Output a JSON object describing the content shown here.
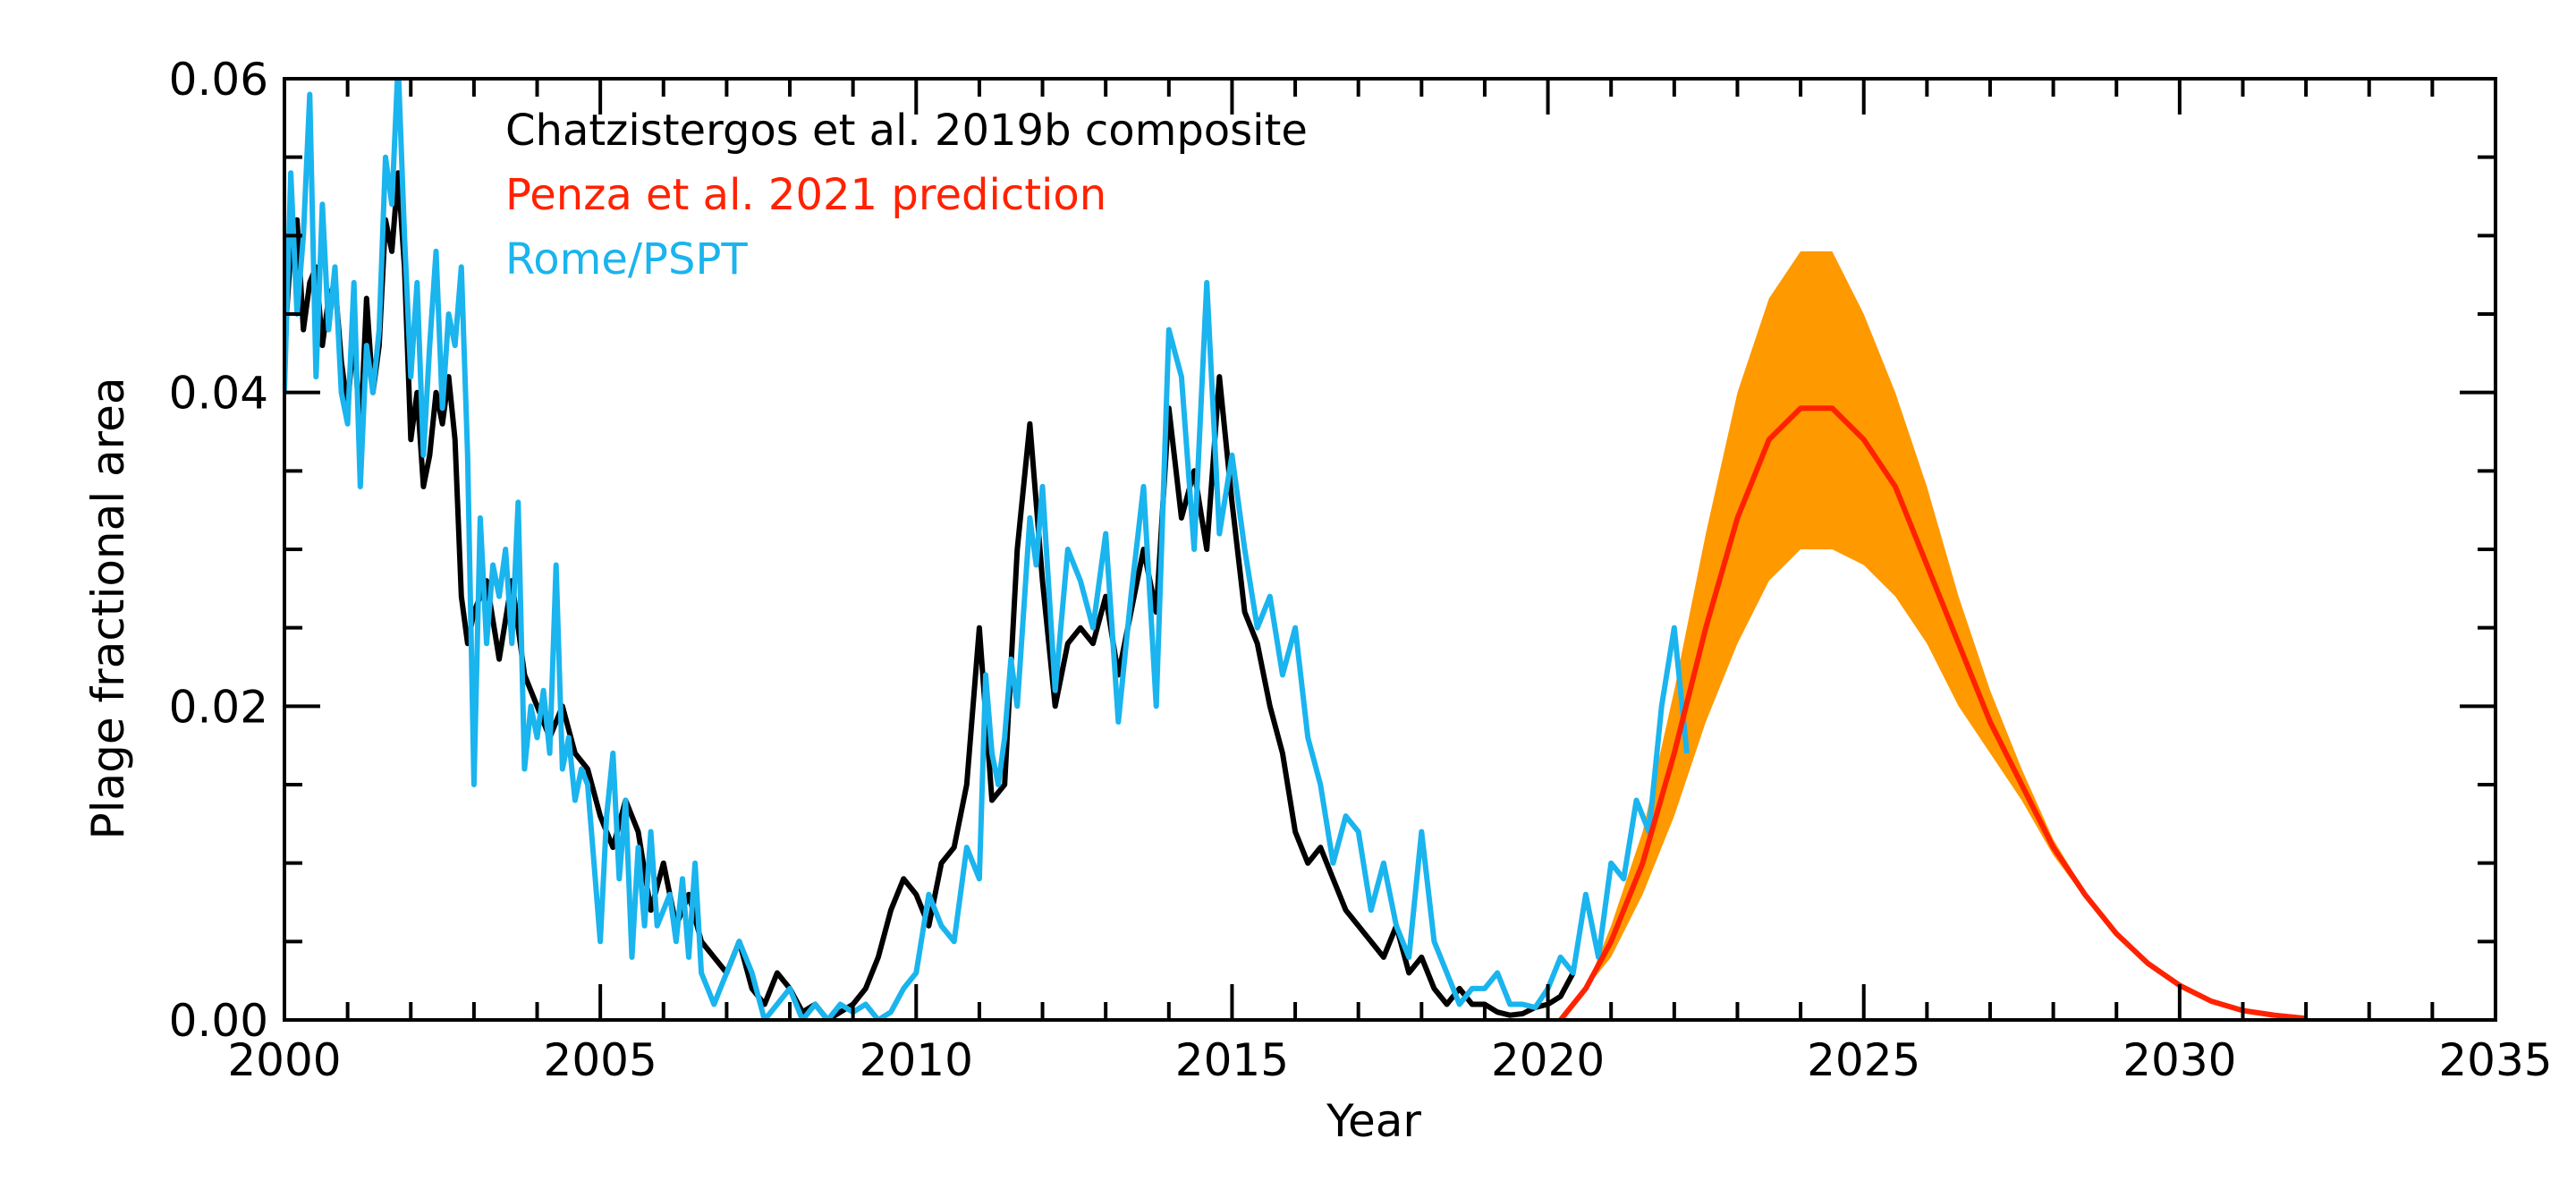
{
  "chart_data": {
    "type": "line",
    "xlabel": "Year",
    "ylabel": "Plage fractional area",
    "xlim": [
      2000,
      2035
    ],
    "ylim": [
      0.0,
      0.06
    ],
    "xticks": [
      {
        "value": 2000,
        "label": "2000"
      },
      {
        "value": 2005,
        "label": "2005"
      },
      {
        "value": 2010,
        "label": "2010"
      },
      {
        "value": 2015,
        "label": "2015"
      },
      {
        "value": 2020,
        "label": "2020"
      },
      {
        "value": 2025,
        "label": "2025"
      },
      {
        "value": 2030,
        "label": "2030"
      },
      {
        "value": 2035,
        "label": "2035"
      }
    ],
    "yticks": [
      {
        "value": 0.0,
        "label": "0.00"
      },
      {
        "value": 0.02,
        "label": "0.02"
      },
      {
        "value": 0.04,
        "label": "0.04"
      },
      {
        "value": 0.06,
        "label": "0.06"
      }
    ],
    "legend": [
      {
        "label": "Chatzistergos et al. 2019b composite",
        "color": "#000000"
      },
      {
        "label": "Penza et al. 2021 prediction",
        "color": "#ff2200"
      },
      {
        "label": "Rome/PSPT",
        "color": "#1ab4ee"
      }
    ],
    "band_color": "#ff9900",
    "series": [
      {
        "name": "Chatzistergos et al. 2019b composite",
        "color": "#000000",
        "x": [
          2000.0,
          2000.1,
          2000.2,
          2000.3,
          2000.4,
          2000.5,
          2000.6,
          2000.7,
          2000.8,
          2000.9,
          2001.0,
          2001.1,
          2001.2,
          2001.3,
          2001.4,
          2001.5,
          2001.6,
          2001.7,
          2001.8,
          2001.9,
          2002.0,
          2002.1,
          2002.2,
          2002.3,
          2002.4,
          2002.5,
          2002.6,
          2002.7,
          2002.8,
          2002.9,
          2003.0,
          2003.2,
          2003.4,
          2003.6,
          2003.8,
          2004.0,
          2004.2,
          2004.4,
          2004.6,
          2004.8,
          2005.0,
          2005.2,
          2005.4,
          2005.6,
          2005.8,
          2006.0,
          2006.2,
          2006.4,
          2006.6,
          2006.8,
          2007.0,
          2007.2,
          2007.4,
          2007.6,
          2007.8,
          2008.0,
          2008.2,
          2008.4,
          2008.6,
          2008.8,
          2009.0,
          2009.2,
          2009.4,
          2009.6,
          2009.8,
          2010.0,
          2010.2,
          2010.4,
          2010.6,
          2010.8,
          2011.0,
          2011.2,
          2011.4,
          2011.6,
          2011.8,
          2012.0,
          2012.2,
          2012.4,
          2012.6,
          2012.8,
          2013.0,
          2013.2,
          2013.4,
          2013.6,
          2013.8,
          2014.0,
          2014.2,
          2014.4,
          2014.6,
          2014.8,
          2015.0,
          2015.2,
          2015.4,
          2015.6,
          2015.8,
          2016.0,
          2016.2,
          2016.4,
          2016.6,
          2016.8,
          2017.0,
          2017.2,
          2017.4,
          2017.6,
          2017.8,
          2018.0,
          2018.2,
          2018.4,
          2018.6,
          2018.8,
          2019.0,
          2019.2,
          2019.4,
          2019.6,
          2019.8,
          2020.0,
          2020.2,
          2020.4
        ],
        "y": [
          0.043,
          0.049,
          0.051,
          0.044,
          0.047,
          0.048,
          0.043,
          0.046,
          0.047,
          0.042,
          0.039,
          0.044,
          0.037,
          0.046,
          0.04,
          0.043,
          0.051,
          0.049,
          0.054,
          0.048,
          0.037,
          0.04,
          0.034,
          0.036,
          0.04,
          0.038,
          0.041,
          0.037,
          0.027,
          0.024,
          0.026,
          0.028,
          0.023,
          0.028,
          0.022,
          0.02,
          0.018,
          0.02,
          0.017,
          0.016,
          0.013,
          0.011,
          0.014,
          0.012,
          0.007,
          0.01,
          0.006,
          0.008,
          0.005,
          0.004,
          0.003,
          0.005,
          0.002,
          0.001,
          0.003,
          0.002,
          0.0005,
          0.001,
          0.0,
          0.0005,
          0.001,
          0.002,
          0.004,
          0.007,
          0.009,
          0.008,
          0.006,
          0.01,
          0.011,
          0.015,
          0.025,
          0.014,
          0.015,
          0.03,
          0.038,
          0.028,
          0.02,
          0.024,
          0.025,
          0.024,
          0.027,
          0.022,
          0.026,
          0.03,
          0.026,
          0.039,
          0.032,
          0.035,
          0.03,
          0.041,
          0.033,
          0.026,
          0.024,
          0.02,
          0.017,
          0.012,
          0.01,
          0.011,
          0.009,
          0.007,
          0.006,
          0.005,
          0.004,
          0.006,
          0.003,
          0.004,
          0.002,
          0.001,
          0.002,
          0.001,
          0.001,
          0.0005,
          0.0003,
          0.0004,
          0.0008,
          0.001,
          0.0015,
          0.003
        ]
      },
      {
        "name": "Rome/PSPT",
        "color": "#1ab4ee",
        "x": [
          2000.0,
          2000.1,
          2000.2,
          2000.3,
          2000.4,
          2000.5,
          2000.6,
          2000.7,
          2000.8,
          2000.9,
          2001.0,
          2001.1,
          2001.2,
          2001.3,
          2001.4,
          2001.5,
          2001.6,
          2001.7,
          2001.8,
          2001.9,
          2002.0,
          2002.1,
          2002.2,
          2002.3,
          2002.4,
          2002.5,
          2002.6,
          2002.7,
          2002.8,
          2002.9,
          2003.0,
          2003.1,
          2003.2,
          2003.3,
          2003.4,
          2003.5,
          2003.6,
          2003.7,
          2003.8,
          2003.9,
          2004.0,
          2004.1,
          2004.2,
          2004.3,
          2004.4,
          2004.5,
          2004.6,
          2004.7,
          2004.8,
          2004.9,
          2005.0,
          2005.1,
          2005.2,
          2005.3,
          2005.4,
          2005.5,
          2005.6,
          2005.7,
          2005.8,
          2005.9,
          2006.0,
          2006.1,
          2006.2,
          2006.3,
          2006.4,
          2006.5,
          2006.6,
          2006.7,
          2006.8,
          2006.9,
          2007.0,
          2007.2,
          2007.4,
          2007.6,
          2007.8,
          2008.0,
          2008.2,
          2008.4,
          2008.6,
          2008.8,
          2009.0,
          2009.2,
          2009.4,
          2009.6,
          2009.8,
          2010.0,
          2010.2,
          2010.4,
          2010.6,
          2010.8,
          2011.0,
          2011.1,
          2011.2,
          2011.3,
          2011.4,
          2011.5,
          2011.6,
          2011.7,
          2011.8,
          2011.9,
          2012.0,
          2012.2,
          2012.4,
          2012.6,
          2012.8,
          2013.0,
          2013.2,
          2013.4,
          2013.6,
          2013.8,
          2014.0,
          2014.2,
          2014.4,
          2014.6,
          2014.8,
          2015.0,
          2015.2,
          2015.4,
          2015.6,
          2015.8,
          2016.0,
          2016.2,
          2016.4,
          2016.6,
          2016.8,
          2017.0,
          2017.2,
          2017.4,
          2017.6,
          2017.8,
          2018.0,
          2018.2,
          2018.4,
          2018.6,
          2018.8,
          2019.0,
          2019.2,
          2019.4,
          2019.6,
          2019.8,
          2020.0,
          2020.2,
          2020.4,
          2020.6,
          2020.8,
          2021.0,
          2021.2,
          2021.4,
          2021.6,
          2021.8,
          2022.0,
          2022.2
        ],
        "y": [
          0.04,
          0.054,
          0.045,
          0.05,
          0.059,
          0.041,
          0.052,
          0.044,
          0.048,
          0.04,
          0.038,
          0.047,
          0.034,
          0.043,
          0.04,
          0.044,
          0.055,
          0.052,
          0.061,
          0.05,
          0.041,
          0.047,
          0.036,
          0.043,
          0.049,
          0.039,
          0.045,
          0.043,
          0.048,
          0.036,
          0.015,
          0.032,
          0.024,
          0.029,
          0.027,
          0.03,
          0.024,
          0.033,
          0.016,
          0.02,
          0.018,
          0.021,
          0.017,
          0.029,
          0.016,
          0.018,
          0.014,
          0.016,
          0.015,
          0.01,
          0.005,
          0.013,
          0.017,
          0.009,
          0.014,
          0.004,
          0.011,
          0.006,
          0.012,
          0.006,
          0.007,
          0.008,
          0.005,
          0.009,
          0.004,
          0.01,
          0.003,
          0.002,
          0.001,
          0.002,
          0.003,
          0.005,
          0.003,
          0.0,
          0.001,
          0.002,
          0.0,
          0.001,
          0.0,
          0.001,
          0.0005,
          0.001,
          0.0,
          0.0005,
          0.002,
          0.003,
          0.008,
          0.006,
          0.005,
          0.011,
          0.009,
          0.022,
          0.017,
          0.015,
          0.018,
          0.023,
          0.02,
          0.026,
          0.032,
          0.029,
          0.034,
          0.021,
          0.03,
          0.028,
          0.025,
          0.031,
          0.019,
          0.027,
          0.034,
          0.02,
          0.044,
          0.041,
          0.03,
          0.047,
          0.031,
          0.036,
          0.03,
          0.025,
          0.027,
          0.022,
          0.025,
          0.018,
          0.015,
          0.01,
          0.013,
          0.012,
          0.007,
          0.01,
          0.006,
          0.004,
          0.012,
          0.005,
          0.003,
          0.001,
          0.002,
          0.002,
          0.003,
          0.001,
          0.001,
          0.0008,
          0.002,
          0.004,
          0.003,
          0.008,
          0.004,
          0.01,
          0.009,
          0.014,
          0.012,
          0.02,
          0.025,
          0.017
        ]
      },
      {
        "name": "Penza et al. 2021 prediction",
        "color": "#ff2200",
        "x": [
          2020.2,
          2020.6,
          2021.0,
          2021.5,
          2022.0,
          2022.5,
          2023.0,
          2023.5,
          2024.0,
          2024.5,
          2025.0,
          2025.5,
          2026.0,
          2026.5,
          2027.0,
          2027.5,
          2028.0,
          2028.5,
          2029.0,
          2029.5,
          2030.0,
          2030.5,
          2031.0,
          2031.5,
          2032.0
        ],
        "y": [
          0.0,
          0.002,
          0.005,
          0.01,
          0.017,
          0.025,
          0.032,
          0.037,
          0.039,
          0.039,
          0.037,
          0.034,
          0.029,
          0.024,
          0.019,
          0.015,
          0.011,
          0.008,
          0.0055,
          0.0036,
          0.0022,
          0.0012,
          0.0006,
          0.0003,
          0.0001
        ],
        "lower": [
          0.0,
          0.002,
          0.004,
          0.008,
          0.013,
          0.019,
          0.024,
          0.028,
          0.03,
          0.03,
          0.029,
          0.027,
          0.024,
          0.02,
          0.017,
          0.014,
          0.0105,
          0.0078,
          0.0054,
          0.0035,
          0.0021,
          0.0011,
          0.0006,
          0.0002,
          0.0001
        ],
        "upper": [
          0.0,
          0.002,
          0.006,
          0.012,
          0.021,
          0.031,
          0.04,
          0.046,
          0.049,
          0.049,
          0.045,
          0.04,
          0.034,
          0.027,
          0.021,
          0.016,
          0.0115,
          0.0082,
          0.0057,
          0.0038,
          0.0024,
          0.0013,
          0.0007,
          0.0004,
          0.0001
        ]
      }
    ]
  }
}
